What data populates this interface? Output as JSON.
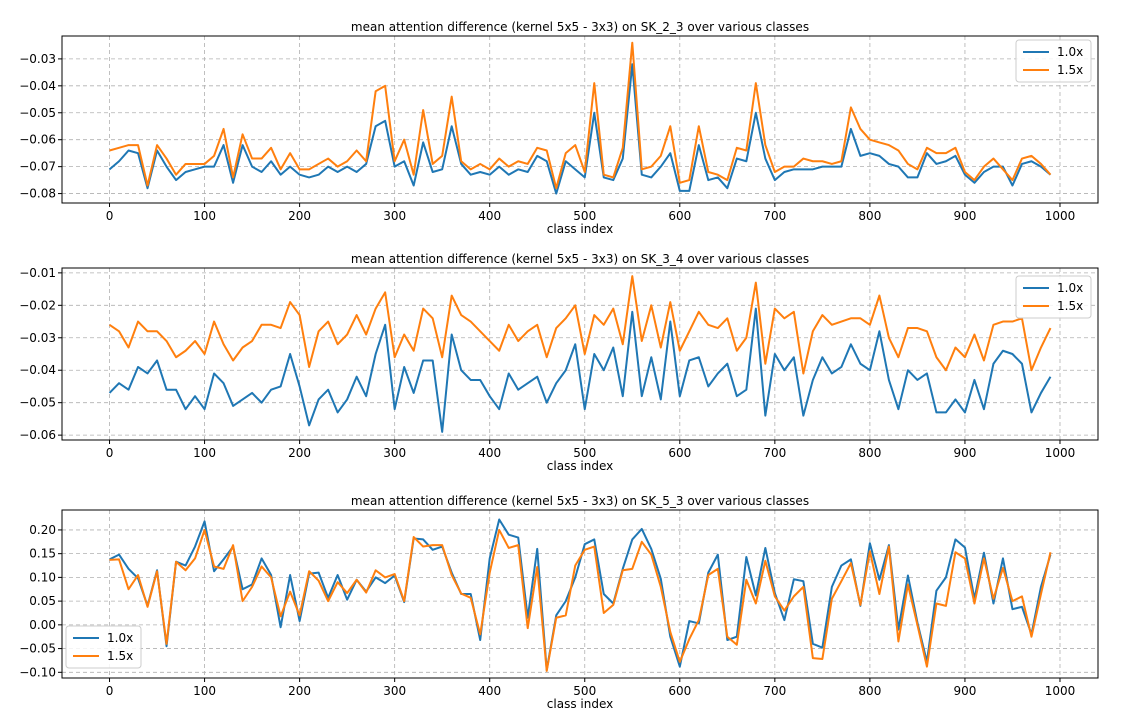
{
  "chart_data": [
    {
      "type": "line",
      "title": "mean attention difference (kernel 5x5 - 3x3) on SK_2_3 over various classes",
      "xlabel": "class index",
      "ylabel": "",
      "xlim": [
        -50,
        1040
      ],
      "ylim": [
        -0.0835,
        -0.0215
      ],
      "xticks": [
        0,
        100,
        200,
        300,
        400,
        500,
        600,
        700,
        800,
        900,
        1000
      ],
      "yticks": [
        -0.08,
        -0.07,
        -0.06,
        -0.05,
        -0.04,
        -0.03
      ],
      "ytick_labels": [
        "−0.08",
        "−0.07",
        "−0.06",
        "−0.05",
        "−0.04",
        "−0.03"
      ],
      "legend": "upper-right",
      "x": [
        0,
        10,
        20,
        30,
        40,
        50,
        60,
        70,
        80,
        90,
        100,
        110,
        120,
        130,
        140,
        150,
        160,
        170,
        180,
        190,
        200,
        210,
        220,
        230,
        240,
        250,
        260,
        270,
        280,
        290,
        300,
        310,
        320,
        330,
        340,
        350,
        360,
        370,
        380,
        390,
        400,
        410,
        420,
        430,
        440,
        450,
        460,
        470,
        480,
        490,
        500,
        510,
        520,
        530,
        540,
        550,
        560,
        570,
        580,
        590,
        600,
        610,
        620,
        630,
        640,
        650,
        660,
        670,
        680,
        690,
        700,
        710,
        720,
        730,
        740,
        750,
        760,
        770,
        780,
        790,
        800,
        810,
        820,
        830,
        840,
        850,
        860,
        870,
        880,
        890,
        900,
        910,
        920,
        930,
        940,
        950,
        960,
        970,
        980,
        990
      ],
      "series": [
        {
          "name": "1.0x",
          "color": "#1f77b4",
          "values": [
            -0.071,
            -0.068,
            -0.064,
            -0.065,
            -0.078,
            -0.064,
            -0.07,
            -0.075,
            -0.072,
            -0.071,
            -0.07,
            -0.07,
            -0.062,
            -0.076,
            -0.062,
            -0.07,
            -0.072,
            -0.068,
            -0.073,
            -0.07,
            -0.073,
            -0.074,
            -0.073,
            -0.07,
            -0.072,
            -0.07,
            -0.072,
            -0.069,
            -0.055,
            -0.053,
            -0.07,
            -0.068,
            -0.077,
            -0.061,
            -0.072,
            -0.071,
            -0.055,
            -0.069,
            -0.073,
            -0.072,
            -0.073,
            -0.07,
            -0.073,
            -0.071,
            -0.072,
            -0.066,
            -0.068,
            -0.08,
            -0.068,
            -0.071,
            -0.074,
            -0.05,
            -0.074,
            -0.075,
            -0.067,
            -0.032,
            -0.073,
            -0.074,
            -0.07,
            -0.065,
            -0.079,
            -0.079,
            -0.062,
            -0.075,
            -0.074,
            -0.078,
            -0.067,
            -0.068,
            -0.05,
            -0.067,
            -0.075,
            -0.072,
            -0.071,
            -0.071,
            -0.071,
            -0.07,
            -0.07,
            -0.07,
            -0.056,
            -0.066,
            -0.065,
            -0.066,
            -0.069,
            -0.07,
            -0.074,
            -0.074,
            -0.065,
            -0.069,
            -0.068,
            -0.066,
            -0.073,
            -0.076,
            -0.072,
            -0.07,
            -0.07,
            -0.077,
            -0.069,
            -0.068,
            -0.07,
            -0.073
          ]
        },
        {
          "name": "1.5x",
          "color": "#ff7f0e",
          "values": [
            -0.064,
            -0.063,
            -0.062,
            -0.062,
            -0.077,
            -0.062,
            -0.067,
            -0.073,
            -0.069,
            -0.069,
            -0.069,
            -0.066,
            -0.056,
            -0.074,
            -0.058,
            -0.067,
            -0.067,
            -0.063,
            -0.071,
            -0.065,
            -0.071,
            -0.071,
            -0.069,
            -0.067,
            -0.07,
            -0.068,
            -0.064,
            -0.068,
            -0.042,
            -0.04,
            -0.068,
            -0.06,
            -0.073,
            -0.049,
            -0.069,
            -0.066,
            -0.044,
            -0.068,
            -0.071,
            -0.069,
            -0.071,
            -0.067,
            -0.07,
            -0.068,
            -0.069,
            -0.063,
            -0.064,
            -0.078,
            -0.065,
            -0.062,
            -0.072,
            -0.039,
            -0.073,
            -0.074,
            -0.063,
            -0.024,
            -0.071,
            -0.07,
            -0.066,
            -0.055,
            -0.076,
            -0.075,
            -0.055,
            -0.072,
            -0.073,
            -0.075,
            -0.063,
            -0.064,
            -0.039,
            -0.062,
            -0.072,
            -0.07,
            -0.07,
            -0.067,
            -0.068,
            -0.068,
            -0.069,
            -0.068,
            -0.048,
            -0.056,
            -0.06,
            -0.061,
            -0.062,
            -0.064,
            -0.069,
            -0.071,
            -0.063,
            -0.065,
            -0.065,
            -0.063,
            -0.072,
            -0.075,
            -0.07,
            -0.067,
            -0.071,
            -0.075,
            -0.067,
            -0.066,
            -0.069,
            -0.073
          ]
        }
      ]
    },
    {
      "type": "line",
      "title": "mean attention difference (kernel 5x5 - 3x3) on SK_3_4 over various classes",
      "xlabel": "class index",
      "ylabel": "",
      "xlim": [
        -50,
        1040
      ],
      "ylim": [
        -0.0615,
        -0.0085
      ],
      "xticks": [
        0,
        100,
        200,
        300,
        400,
        500,
        600,
        700,
        800,
        900,
        1000
      ],
      "yticks": [
        -0.06,
        -0.05,
        -0.04,
        -0.03,
        -0.02,
        -0.01
      ],
      "ytick_labels": [
        "−0.06",
        "−0.05",
        "−0.04",
        "−0.03",
        "−0.02",
        "−0.01"
      ],
      "legend": "upper-right",
      "x": [
        0,
        10,
        20,
        30,
        40,
        50,
        60,
        70,
        80,
        90,
        100,
        110,
        120,
        130,
        140,
        150,
        160,
        170,
        180,
        190,
        200,
        210,
        220,
        230,
        240,
        250,
        260,
        270,
        280,
        290,
        300,
        310,
        320,
        330,
        340,
        350,
        360,
        370,
        380,
        390,
        400,
        410,
        420,
        430,
        440,
        450,
        460,
        470,
        480,
        490,
        500,
        510,
        520,
        530,
        540,
        550,
        560,
        570,
        580,
        590,
        600,
        610,
        620,
        630,
        640,
        650,
        660,
        670,
        680,
        690,
        700,
        710,
        720,
        730,
        740,
        750,
        760,
        770,
        780,
        790,
        800,
        810,
        820,
        830,
        840,
        850,
        860,
        870,
        880,
        890,
        900,
        910,
        920,
        930,
        940,
        950,
        960,
        970,
        980,
        990
      ],
      "series": [
        {
          "name": "1.0x",
          "color": "#1f77b4",
          "values": [
            -0.047,
            -0.044,
            -0.046,
            -0.039,
            -0.041,
            -0.037,
            -0.046,
            -0.046,
            -0.052,
            -0.048,
            -0.052,
            -0.041,
            -0.044,
            -0.051,
            -0.049,
            -0.047,
            -0.05,
            -0.046,
            -0.045,
            -0.035,
            -0.045,
            -0.057,
            -0.049,
            -0.046,
            -0.053,
            -0.049,
            -0.042,
            -0.048,
            -0.035,
            -0.026,
            -0.052,
            -0.039,
            -0.047,
            -0.037,
            -0.037,
            -0.059,
            -0.029,
            -0.04,
            -0.043,
            -0.043,
            -0.048,
            -0.052,
            -0.041,
            -0.046,
            -0.044,
            -0.042,
            -0.05,
            -0.044,
            -0.04,
            -0.032,
            -0.052,
            -0.035,
            -0.04,
            -0.033,
            -0.048,
            -0.022,
            -0.048,
            -0.036,
            -0.049,
            -0.025,
            -0.048,
            -0.037,
            -0.036,
            -0.045,
            -0.041,
            -0.038,
            -0.048,
            -0.046,
            -0.021,
            -0.054,
            -0.035,
            -0.04,
            -0.036,
            -0.054,
            -0.043,
            -0.036,
            -0.041,
            -0.039,
            -0.032,
            -0.038,
            -0.04,
            -0.028,
            -0.043,
            -0.052,
            -0.04,
            -0.043,
            -0.041,
            -0.053,
            -0.053,
            -0.049,
            -0.053,
            -0.043,
            -0.052,
            -0.038,
            -0.034,
            -0.035,
            -0.038,
            -0.053,
            -0.047,
            -0.042
          ]
        },
        {
          "name": "1.5x",
          "color": "#ff7f0e",
          "values": [
            -0.026,
            -0.028,
            -0.033,
            -0.025,
            -0.028,
            -0.028,
            -0.031,
            -0.036,
            -0.034,
            -0.031,
            -0.035,
            -0.025,
            -0.032,
            -0.037,
            -0.033,
            -0.031,
            -0.026,
            -0.026,
            -0.027,
            -0.019,
            -0.023,
            -0.039,
            -0.028,
            -0.025,
            -0.032,
            -0.029,
            -0.023,
            -0.029,
            -0.021,
            -0.016,
            -0.036,
            -0.029,
            -0.034,
            -0.021,
            -0.024,
            -0.036,
            -0.017,
            -0.023,
            -0.025,
            -0.028,
            -0.031,
            -0.034,
            -0.026,
            -0.031,
            -0.028,
            -0.026,
            -0.036,
            -0.027,
            -0.024,
            -0.02,
            -0.035,
            -0.023,
            -0.026,
            -0.021,
            -0.032,
            -0.011,
            -0.031,
            -0.02,
            -0.033,
            -0.019,
            -0.034,
            -0.028,
            -0.022,
            -0.026,
            -0.027,
            -0.024,
            -0.034,
            -0.03,
            -0.013,
            -0.038,
            -0.021,
            -0.024,
            -0.022,
            -0.041,
            -0.028,
            -0.023,
            -0.026,
            -0.025,
            -0.024,
            -0.024,
            -0.026,
            -0.017,
            -0.03,
            -0.036,
            -0.027,
            -0.027,
            -0.028,
            -0.036,
            -0.04,
            -0.033,
            -0.036,
            -0.029,
            -0.037,
            -0.026,
            -0.025,
            -0.025,
            -0.024,
            -0.04,
            -0.033,
            -0.027
          ]
        }
      ]
    },
    {
      "type": "line",
      "title": "mean attention difference (kernel 5x5 - 3x3) on SK_5_3 over various classes",
      "xlabel": "class index",
      "ylabel": "",
      "xlim": [
        -50,
        1040
      ],
      "ylim": [
        -0.112,
        0.242
      ],
      "xticks": [
        0,
        100,
        200,
        300,
        400,
        500,
        600,
        700,
        800,
        900,
        1000
      ],
      "yticks": [
        -0.1,
        -0.05,
        0.0,
        0.05,
        0.1,
        0.15,
        0.2
      ],
      "ytick_labels": [
        "−0.10",
        "−0.05",
        "0.00",
        "0.05",
        "0.10",
        "0.15",
        "0.20"
      ],
      "legend": "lower-left",
      "x": [
        0,
        10,
        20,
        30,
        40,
        50,
        60,
        70,
        80,
        90,
        100,
        110,
        120,
        130,
        140,
        150,
        160,
        170,
        180,
        190,
        200,
        210,
        220,
        230,
        240,
        250,
        260,
        270,
        280,
        290,
        300,
        310,
        320,
        330,
        340,
        350,
        360,
        370,
        380,
        390,
        400,
        410,
        420,
        430,
        440,
        450,
        460,
        470,
        480,
        490,
        500,
        510,
        520,
        530,
        540,
        550,
        560,
        570,
        580,
        590,
        600,
        610,
        620,
        630,
        640,
        650,
        660,
        670,
        680,
        690,
        700,
        710,
        720,
        730,
        740,
        750,
        760,
        770,
        780,
        790,
        800,
        810,
        820,
        830,
        840,
        850,
        860,
        870,
        880,
        890,
        900,
        910,
        920,
        930,
        940,
        950,
        960,
        970,
        980,
        990
      ],
      "series": [
        {
          "name": "1.0x",
          "color": "#1f77b4",
          "values": [
            0.138,
            0.148,
            0.118,
            0.098,
            0.04,
            0.115,
            -0.045,
            0.133,
            0.125,
            0.165,
            0.218,
            0.113,
            0.138,
            0.165,
            0.075,
            0.085,
            0.14,
            0.105,
            -0.005,
            0.105,
            0.008,
            0.108,
            0.11,
            0.057,
            0.105,
            0.053,
            0.095,
            0.07,
            0.1,
            0.088,
            0.104,
            0.048,
            0.182,
            0.18,
            0.158,
            0.165,
            0.11,
            0.065,
            0.065,
            -0.032,
            0.14,
            0.222,
            0.19,
            0.184,
            0.015,
            0.16,
            -0.095,
            0.02,
            0.05,
            0.1,
            0.17,
            0.18,
            0.065,
            0.045,
            0.118,
            0.18,
            0.202,
            0.16,
            0.097,
            -0.025,
            -0.088,
            0.008,
            0.003,
            0.11,
            0.148,
            -0.032,
            -0.025,
            0.143,
            0.062,
            0.162,
            0.067,
            0.01,
            0.096,
            0.092,
            -0.04,
            -0.048,
            0.08,
            0.125,
            0.138,
            0.04,
            0.172,
            0.095,
            0.168,
            -0.01,
            0.104,
            0.005,
            -0.078,
            0.072,
            0.1,
            0.18,
            0.163,
            0.055,
            0.152,
            0.045,
            0.14,
            0.033,
            0.038,
            -0.02,
            0.08,
            0.148
          ]
        },
        {
          "name": "1.5x",
          "color": "#ff7f0e",
          "values": [
            0.137,
            0.138,
            0.075,
            0.105,
            0.038,
            0.113,
            -0.04,
            0.133,
            0.115,
            0.14,
            0.2,
            0.123,
            0.118,
            0.168,
            0.05,
            0.08,
            0.123,
            0.1,
            0.018,
            0.07,
            0.02,
            0.113,
            0.093,
            0.05,
            0.09,
            0.067,
            0.095,
            0.068,
            0.115,
            0.1,
            0.107,
            0.05,
            0.185,
            0.165,
            0.168,
            0.168,
            0.105,
            0.066,
            0.057,
            -0.02,
            0.11,
            0.2,
            0.162,
            0.168,
            -0.007,
            0.122,
            -0.097,
            0.015,
            0.02,
            0.125,
            0.158,
            0.165,
            0.025,
            0.042,
            0.115,
            0.118,
            0.175,
            0.148,
            0.08,
            -0.015,
            -0.078,
            -0.03,
            0.01,
            0.105,
            0.118,
            -0.025,
            -0.042,
            0.095,
            0.045,
            0.135,
            0.06,
            0.03,
            0.06,
            0.08,
            -0.07,
            -0.072,
            0.055,
            0.092,
            0.13,
            0.042,
            0.155,
            0.065,
            0.165,
            -0.035,
            0.085,
            0.0,
            -0.088,
            0.045,
            0.04,
            0.153,
            0.14,
            0.045,
            0.14,
            0.055,
            0.12,
            0.05,
            0.06,
            -0.025,
            0.065,
            0.153
          ]
        }
      ]
    }
  ]
}
